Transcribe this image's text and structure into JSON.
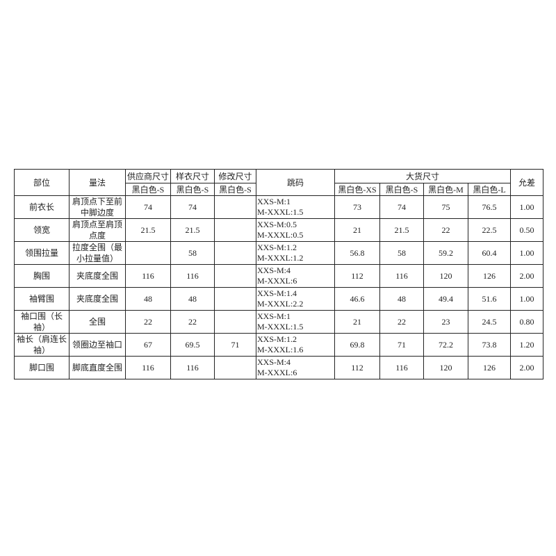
{
  "headers": {
    "part": "部位",
    "method": "量法",
    "supplier": "供应商尺寸",
    "sample": "样衣尺寸",
    "revised": "修改尺寸",
    "jump": "跳码",
    "bulk": "大货尺寸",
    "tolerance": "允差",
    "supplier_sub": "黑白色-S",
    "sample_sub": "黑白色-S",
    "revised_sub": "黑白色-S",
    "bulk_sizes": [
      "黑白色-XS",
      "黑白色-S",
      "黑白色-M",
      "黑白色-L"
    ]
  },
  "rows": [
    {
      "part": "前衣长",
      "method": "肩顶点下至前中脚边度",
      "supplier": "74",
      "sample": "74",
      "revised": "",
      "jump1": "XXS-M:1",
      "jump2": "M-XXXL:1.5",
      "xs": "73",
      "s": "74",
      "m": "75",
      "l": "76.5",
      "tol": "1.00"
    },
    {
      "part": "领宽",
      "method": "肩顶点至肩顶点度",
      "supplier": "21.5",
      "sample": "21.5",
      "revised": "",
      "jump1": "XXS-M:0.5",
      "jump2": "M-XXXL:0.5",
      "xs": "21",
      "s": "21.5",
      "m": "22",
      "l": "22.5",
      "tol": "0.50"
    },
    {
      "part": "领围拉量",
      "method": "拉度全围（最小拉量值）",
      "supplier": "",
      "sample": "58",
      "revised": "",
      "jump1": "XXS-M:1.2",
      "jump2": "M-XXXL:1.2",
      "xs": "56.8",
      "s": "58",
      "m": "59.2",
      "l": "60.4",
      "tol": "1.00"
    },
    {
      "part": "胸围",
      "method": "夹底度全围",
      "supplier": "116",
      "sample": "116",
      "revised": "",
      "jump1": "XXS-M:4",
      "jump2": "M-XXXL:6",
      "xs": "112",
      "s": "116",
      "m": "120",
      "l": "126",
      "tol": "2.00"
    },
    {
      "part": "袖臂围",
      "method": "夹底度全围",
      "supplier": "48",
      "sample": "48",
      "revised": "",
      "jump1": "XXS-M:1.4",
      "jump2": "M-XXXL:2.2",
      "xs": "46.6",
      "s": "48",
      "m": "49.4",
      "l": "51.6",
      "tol": "1.00"
    },
    {
      "part": "袖口围（长袖）",
      "method": "全围",
      "supplier": "22",
      "sample": "22",
      "revised": "",
      "jump1": "XXS-M:1",
      "jump2": "M-XXXL:1.5",
      "xs": "21",
      "s": "22",
      "m": "23",
      "l": "24.5",
      "tol": "0.80"
    },
    {
      "part": "袖长（肩连长袖）",
      "method": "领圈边至袖口",
      "supplier": "67",
      "sample": "69.5",
      "revised": "71",
      "jump1": "XXS-M:1.2",
      "jump2": "M-XXXL:1.6",
      "xs": "69.8",
      "s": "71",
      "m": "72.2",
      "l": "73.8",
      "tol": "1.20"
    },
    {
      "part": "脚口围",
      "method": "脚底直度全围",
      "supplier": "116",
      "sample": "116",
      "revised": "",
      "jump1": "XXS-M:4",
      "jump2": "M-XXXL:6",
      "xs": "112",
      "s": "116",
      "m": "120",
      "l": "126",
      "tol": "2.00"
    }
  ]
}
